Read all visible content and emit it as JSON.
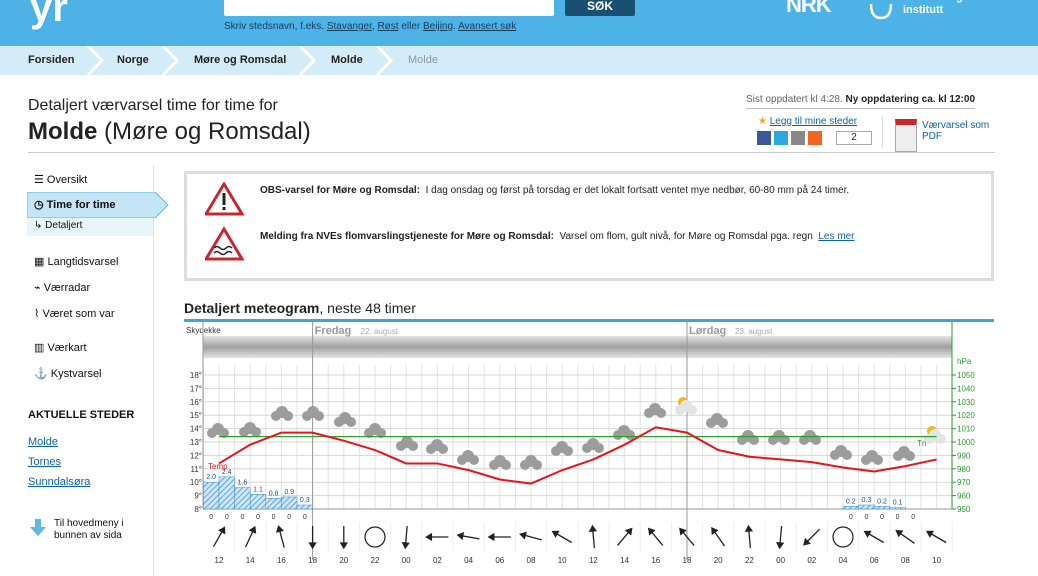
{
  "header": {
    "logo": "yr",
    "search_button": "SØK",
    "search_hint": "Skriv stedsnavn, f.eks.",
    "examples": [
      "Stavanger",
      "Røst",
      "Beijing"
    ],
    "or": "eller",
    "advanced": "Avansert søk",
    "nrk": "NRK",
    "met_line1": "meteorologisk",
    "met_line2": "institutt"
  },
  "breadcrumb": [
    "Forsiden",
    "Norge",
    "Møre og Romsdal",
    "Molde",
    "Molde"
  ],
  "page": {
    "subtitle": "Detaljert værvarsel time for time for",
    "place": "Molde",
    "region": "(Møre og Romsdal)",
    "updated": "Sist oppdatert kl 4:28.",
    "next_update": "Ny oppdatering ca. kl 12:00",
    "favorite": "Legg til mine steder",
    "share_count": 2,
    "pdf_line1": "Værvarsel som",
    "pdf_line2": "PDF"
  },
  "sidebar": {
    "menu": [
      "Oversikt",
      "Time for time",
      "Detaljert",
      "Langtidsvarsel",
      "Værradar",
      "Været som var",
      "Værkart",
      "Kystvarsel"
    ],
    "places_title": "AKTUELLE STEDER",
    "places": [
      "Molde",
      "Tornes",
      "Sunndalsøra"
    ],
    "main_menu_line1": "Til hovedmeny i",
    "main_menu_line2": "bunnen av sida"
  },
  "warnings": [
    {
      "title": "OBS-varsel for Møre og Romsdal:",
      "text": "I dag onsdag og først på torsdag er det lokalt fortsatt ventet mye nedbør, 60-80 mm på 24 timer."
    },
    {
      "title": "Melding fra NVEs flomvarslingstjeneste for Møre og Romsdal:",
      "text": "Varsel om flom, gult nivå, for Møre og Romsdal pga. regn",
      "link": "Les mer"
    }
  ],
  "meteogram": {
    "type": "line",
    "title": "Detaljert meteogram",
    "title_rest": ", neste 48 timer",
    "cloud_label": "Skydekke",
    "days": [
      {
        "name": "Fredag",
        "date": "22. august"
      },
      {
        "name": "Lørdag",
        "date": "23. august"
      }
    ],
    "x_labels": [
      "12",
      "14",
      "16",
      "18",
      "20",
      "22",
      "00",
      "02",
      "04",
      "06",
      "08",
      "10",
      "12",
      "14",
      "16",
      "18",
      "20",
      "22",
      "00",
      "02",
      "04",
      "06",
      "08",
      "10"
    ],
    "temperature": {
      "name": "Temp",
      "color": "#e3161d",
      "values": [
        11.4,
        12.8,
        13.7,
        13.7,
        13.1,
        12.4,
        11.4,
        11.4,
        10.9,
        10.2,
        9.9,
        10.9,
        11.7,
        12.8,
        14.1,
        13.7,
        12.4,
        11.9,
        11.7,
        11.5,
        11.1,
        10.8,
        11.2,
        11.7
      ]
    },
    "pressure": {
      "name": "Tn",
      "color": "#2aa12a",
      "axis": "y2",
      "values": [
        1004,
        1004,
        1004,
        1004,
        1004,
        1004,
        1004,
        1004,
        1004,
        1004,
        1004,
        1004,
        1004,
        1004,
        1004,
        1004,
        1004,
        1004,
        1004,
        1004,
        1004,
        1004,
        1004,
        1004
      ]
    },
    "ylim": [
      8,
      18
    ],
    "yticks": [
      {
        "value": 8,
        "label": "8°"
      },
      {
        "value": 9,
        "label": "9°"
      },
      {
        "value": 10,
        "label": "10°"
      },
      {
        "value": 11,
        "label": "11°"
      },
      {
        "value": 12,
        "label": "12°"
      },
      {
        "value": 13,
        "label": "13°"
      },
      {
        "value": 14,
        "label": "14°"
      },
      {
        "value": 15,
        "label": "15°"
      },
      {
        "value": 16,
        "label": "16°"
      },
      {
        "value": 17,
        "label": "17°"
      },
      {
        "value": 18,
        "label": "18°"
      }
    ],
    "y2lim": [
      950,
      1050
    ],
    "y2ticks": [
      950,
      960,
      970,
      980,
      990,
      1000,
      1010,
      1020,
      1030,
      1040,
      1050
    ],
    "y2_label": "hPa",
    "precip": {
      "color": "#3c8fd6",
      "x": [
        -1,
        0,
        1,
        2,
        3,
        4,
        5,
        40,
        41,
        42,
        43
      ],
      "values": [
        2.0,
        2.4,
        1.6,
        1.1,
        0.8,
        0.9,
        0.3,
        0.2,
        0.3,
        0.2,
        0.1
      ],
      "value_labels": [
        "2.0",
        "2.4",
        "1.6",
        "1.1",
        "0.8",
        "0.9",
        "0.3",
        "0.2",
        "0.3",
        "0.2",
        "0.1"
      ]
    },
    "precip_min": {
      "x": [
        -1,
        0,
        1,
        2,
        3,
        4,
        5,
        40,
        41,
        42,
        43,
        44
      ],
      "values": [
        0,
        0,
        0,
        0,
        0,
        0,
        0,
        0,
        0,
        0,
        0,
        0
      ]
    },
    "wind": {
      "directions": [
        30,
        25,
        -15,
        180,
        180,
        null,
        185,
        270,
        280,
        270,
        285,
        300,
        355,
        40,
        320,
        320,
        325,
        355,
        185,
        225,
        null,
        300,
        305,
        300
      ]
    }
  }
}
